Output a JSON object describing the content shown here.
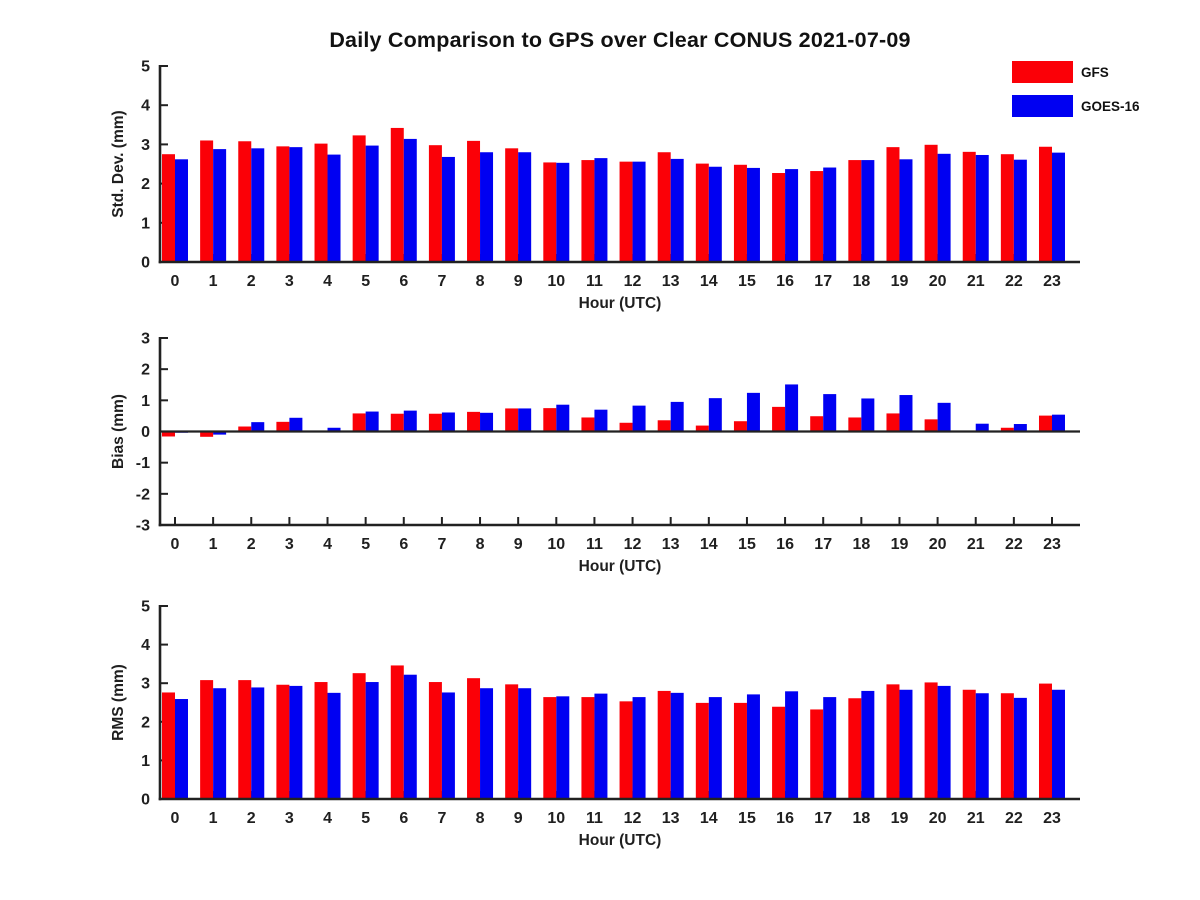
{
  "title": "Daily Comparison to GPS over Clear CONUS 2021-07-09",
  "legend": {
    "items": [
      {
        "label": "GFS",
        "color": "#fb0007"
      },
      {
        "label": "GOES-16",
        "color": "#0000f2"
      }
    ]
  },
  "chart_data": [
    {
      "type": "bar",
      "title": "",
      "xlabel": "Hour (UTC)",
      "ylabel": "Std. Dev. (mm)",
      "ylim": [
        0,
        5
      ],
      "yticks": [
        0,
        1,
        2,
        3,
        4,
        5
      ],
      "grid": false,
      "categories": [
        "0",
        "1",
        "2",
        "3",
        "4",
        "5",
        "6",
        "7",
        "8",
        "9",
        "10",
        "11",
        "12",
        "13",
        "14",
        "15",
        "16",
        "17",
        "18",
        "19",
        "20",
        "21",
        "22",
        "23"
      ],
      "series": [
        {
          "name": "GFS",
          "color": "#fb0007",
          "values": [
            2.75,
            3.1,
            3.08,
            2.95,
            3.02,
            3.23,
            3.42,
            2.98,
            3.09,
            2.9,
            2.54,
            2.6,
            2.56,
            2.8,
            2.51,
            2.48,
            2.27,
            2.32,
            2.6,
            2.93,
            2.99,
            2.81,
            2.75,
            2.94
          ]
        },
        {
          "name": "GOES-16",
          "color": "#0000f2",
          "values": [
            2.62,
            2.88,
            2.9,
            2.93,
            2.74,
            2.97,
            3.14,
            2.68,
            2.8,
            2.8,
            2.53,
            2.65,
            2.56,
            2.63,
            2.43,
            2.4,
            2.37,
            2.41,
            2.6,
            2.62,
            2.76,
            2.73,
            2.61,
            2.79
          ]
        }
      ]
    },
    {
      "type": "bar",
      "title": "",
      "xlabel": "Hour (UTC)",
      "ylabel": "Bias (mm)",
      "ylim": [
        -3,
        3
      ],
      "yticks": [
        -3,
        -2,
        -1,
        0,
        1,
        2,
        3
      ],
      "grid": false,
      "zero_line": true,
      "categories": [
        "0",
        "1",
        "2",
        "3",
        "4",
        "5",
        "6",
        "7",
        "8",
        "9",
        "10",
        "11",
        "12",
        "13",
        "14",
        "15",
        "16",
        "17",
        "18",
        "19",
        "20",
        "21",
        "22",
        "23"
      ],
      "series": [
        {
          "name": "GFS",
          "color": "#fb0007",
          "values": [
            -0.16,
            -0.17,
            0.16,
            0.31,
            0.02,
            0.58,
            0.57,
            0.57,
            0.63,
            0.74,
            0.75,
            0.45,
            0.28,
            0.36,
            0.19,
            0.33,
            0.79,
            0.49,
            0.45,
            0.58,
            0.39,
            -0.03,
            0.12,
            0.51
          ]
        },
        {
          "name": "GOES-16",
          "color": "#0000f2",
          "values": [
            -0.04,
            -0.1,
            0.3,
            0.44,
            0.12,
            0.64,
            0.67,
            0.61,
            0.6,
            0.74,
            0.86,
            0.7,
            0.83,
            0.95,
            1.07,
            1.24,
            1.51,
            1.2,
            1.06,
            1.17,
            0.92,
            0.25,
            0.24,
            0.54
          ]
        }
      ]
    },
    {
      "type": "bar",
      "title": "",
      "xlabel": "Hour (UTC)",
      "ylabel": "RMS (mm)",
      "ylim": [
        0,
        5
      ],
      "yticks": [
        0,
        1,
        2,
        3,
        4,
        5
      ],
      "grid": false,
      "categories": [
        "0",
        "1",
        "2",
        "3",
        "4",
        "5",
        "6",
        "7",
        "8",
        "9",
        "10",
        "11",
        "12",
        "13",
        "14",
        "15",
        "16",
        "17",
        "18",
        "19",
        "20",
        "21",
        "22",
        "23"
      ],
      "series": [
        {
          "name": "GFS",
          "color": "#fb0007",
          "values": [
            2.76,
            3.08,
            3.08,
            2.96,
            3.03,
            3.26,
            3.46,
            3.03,
            3.13,
            2.97,
            2.64,
            2.64,
            2.53,
            2.8,
            2.49,
            2.49,
            2.39,
            2.32,
            2.61,
            2.97,
            3.02,
            2.83,
            2.74,
            2.99
          ]
        },
        {
          "name": "GOES-16",
          "color": "#0000f2",
          "values": [
            2.59,
            2.87,
            2.89,
            2.93,
            2.75,
            3.03,
            3.22,
            2.76,
            2.87,
            2.87,
            2.66,
            2.73,
            2.64,
            2.75,
            2.64,
            2.71,
            2.79,
            2.64,
            2.8,
            2.83,
            2.93,
            2.74,
            2.62,
            2.83
          ]
        }
      ]
    }
  ]
}
